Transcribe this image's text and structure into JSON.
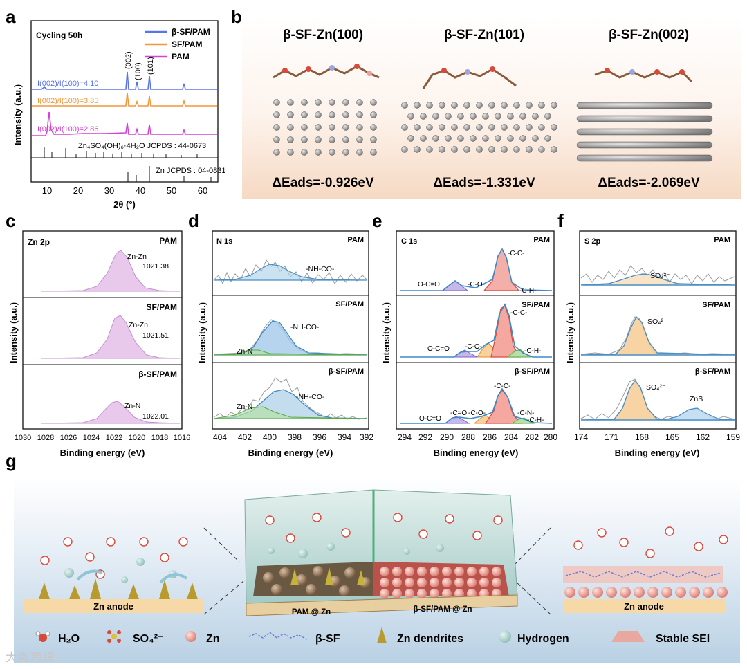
{
  "panel_letters": [
    "a",
    "b",
    "c",
    "d",
    "e",
    "f",
    "g"
  ],
  "panel_a": {
    "title": "Cycling 50h",
    "legend": [
      "β-SF/PAM",
      "SF/PAM",
      "PAM"
    ],
    "colors": {
      "bsf": "#5b73e8",
      "sf": "#f2963a",
      "pam": "#d641d6"
    },
    "ratios": [
      "I(002)/I(100)=4.10",
      "I(002)/I(100)=3.85",
      "I(002)/I(100)=2.86"
    ],
    "peaks": [
      "(002)",
      "(100)",
      "(101)"
    ],
    "ref1": "Zn₄SO₄(OH)₆·4H₂O JCPDS : 44-0673",
    "ref2": "Zn JCPDS : 04-0831",
    "ylabel": "Intensity (a.u.)",
    "xlabel": "2θ (°)",
    "xticks": [
      "10",
      "20",
      "30",
      "40",
      "50",
      "60"
    ]
  },
  "panel_b": {
    "titles": [
      "β-SF-Zn(100)",
      "β-SF-Zn(101)",
      "β-SF-Zn(002)"
    ],
    "energies": [
      "ΔEads=-0.926eV",
      "ΔEads=-1.331eV",
      "ΔEads=-2.069eV"
    ]
  },
  "panel_c": {
    "element": "Zn 2p",
    "samples": [
      "PAM",
      "SF/PAM",
      "β-SF/PAM"
    ],
    "peaks": [
      [
        "Zn-Zn",
        "1021.38"
      ],
      [
        "Zn-Zn",
        "1021.51"
      ],
      [
        "Zn-N",
        "1022.01"
      ]
    ],
    "xticks": [
      "1030",
      "1028",
      "1026",
      "1024",
      "1022",
      "1020",
      "1018",
      "1016"
    ],
    "xlabel": "Binding energy (eV)",
    "ylabel": "Intensity (a.u.)"
  },
  "panel_d": {
    "element": "N 1s",
    "samples": [
      "PAM",
      "SF/PAM",
      "β-SF/PAM"
    ],
    "labels": [
      "-NH-CO-",
      "-NH-CO-",
      "Zn-N",
      "Zn-N",
      "-NH-CO-"
    ],
    "xticks": [
      "404",
      "402",
      "400",
      "398",
      "396",
      "394",
      "392"
    ],
    "xlabel": "Binding energy (eV)",
    "ylabel": "Intensity (a.u.)"
  },
  "panel_e": {
    "element": "C 1s",
    "samples": [
      "PAM",
      "SF/PAM",
      "β-SF/PAM"
    ],
    "labels": [
      "O-C=O",
      "-C-O-",
      "-C-C-",
      "-C-H-",
      "-C-C-",
      "-C-O-",
      "O-C=O",
      "-C-H-",
      "-C-C-",
      "-C=O",
      "-C-O-",
      "O-C=O",
      "-C-N-",
      "-C-H-"
    ],
    "xticks": [
      "294",
      "292",
      "290",
      "288",
      "286",
      "284",
      "282",
      "280"
    ],
    "xlabel": "Binding energy (eV)",
    "ylabel": "Intensity (a.u.)"
  },
  "panel_f": {
    "element": "S 2p",
    "samples": [
      "PAM",
      "SF/PAM",
      "β-SF/PAM"
    ],
    "labels": [
      "SO₄²⁻",
      "SO₄²⁻",
      "SO₄²⁻",
      "ZnS"
    ],
    "xticks": [
      "174",
      "171",
      "168",
      "165",
      "162",
      "159"
    ],
    "xlabel": "Binding energy (eV)",
    "ylabel": "Intensity (a.u.)"
  },
  "panel_g": {
    "left_anode": "Zn anode",
    "right_anode": "Zn anode",
    "center_left": "PAM @ Zn",
    "center_right": "β-SF/PAM @ Zn",
    "legend": [
      "H₂O",
      "SO₄²⁻",
      "Zn",
      "β-SF",
      "Zn dendrites",
      "Hydrogen",
      "Stable SEI"
    ]
  },
  "watermark": "大数跨境"
}
